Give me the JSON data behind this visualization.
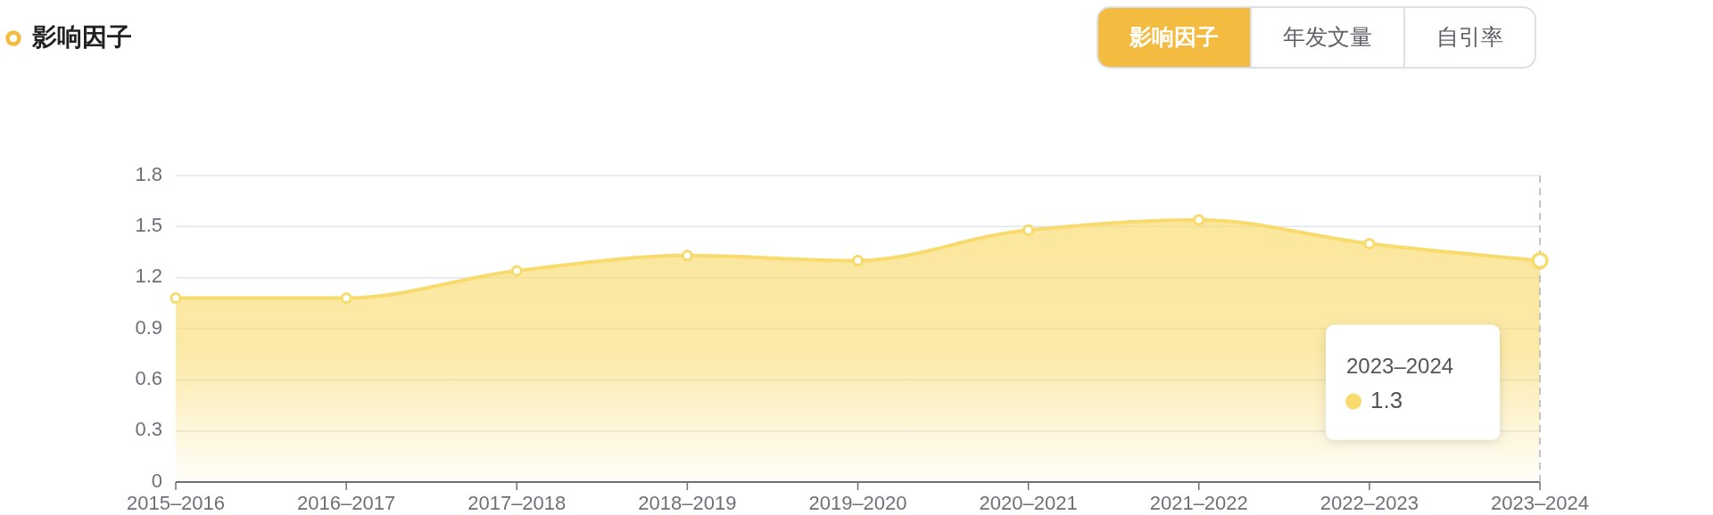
{
  "chart_data": {
    "type": "area",
    "title": "影响因子",
    "categories": [
      "2015–2016",
      "2016–2017",
      "2017–2018",
      "2018–2019",
      "2019–2020",
      "2020–2021",
      "2021–2022",
      "2022–2023",
      "2023–2024"
    ],
    "values": [
      1.08,
      1.08,
      1.24,
      1.33,
      1.3,
      1.48,
      1.54,
      1.4,
      1.3
    ],
    "color": "#f9db6d",
    "marker": "circle",
    "grid": "y",
    "ylim": [
      0,
      1.8
    ],
    "yticks": [
      0,
      0.3,
      0.6,
      0.9,
      1.2,
      1.5,
      1.8
    ],
    "ref_lines": [
      {
        "axis": "x",
        "value": "2023–2024",
        "line_style": "dashed",
        "color": "#aeb2c0"
      }
    ],
    "annotations": [
      "影响因子",
      "年发文量",
      "自引率",
      "2023–2024",
      "1.3"
    ]
  }
}
